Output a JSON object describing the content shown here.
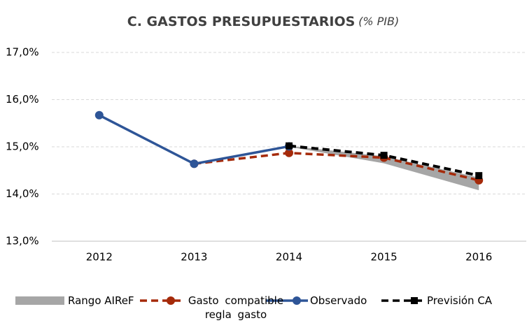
{
  "chart_data": {
    "type": "line",
    "title": "C. GASTOS PRESUPUESTARIOS",
    "subtitle": "(% PIB)",
    "categories": [
      "2012",
      "2013",
      "2014",
      "2015",
      "2016"
    ],
    "ylim": [
      13,
      17
    ],
    "yticks": [
      {
        "value": 13,
        "label": "13,0%"
      },
      {
        "value": 14,
        "label": "14,0%"
      },
      {
        "value": 15,
        "label": "15,0%"
      },
      {
        "value": 16,
        "label": "16,0%"
      },
      {
        "value": 17,
        "label": "17,0%"
      }
    ],
    "grid": true,
    "legend": "bottom",
    "series": [
      {
        "name": "Rango AIReF",
        "color": "#a6a6a6",
        "style": "band",
        "values": [
          null,
          null,
          15.0,
          14.65,
          14.08
        ],
        "upper": [
          null,
          null,
          15.02,
          14.8,
          14.35
        ]
      },
      {
        "name": "Gasto compatible regla gasto",
        "color": "#a52a0a",
        "style": "dashed",
        "marker": "circle",
        "values": [
          null,
          14.64,
          14.87,
          14.77,
          14.29
        ]
      },
      {
        "name": "Observado",
        "color": "#2e5597",
        "style": "solid",
        "marker": "circle",
        "values": [
          15.67,
          14.64,
          15.01,
          null,
          null
        ]
      },
      {
        "name": "Previsión CA",
        "color": "#000000",
        "style": "dashed",
        "marker": "square",
        "values": [
          null,
          null,
          15.02,
          14.82,
          14.39
        ]
      }
    ]
  }
}
